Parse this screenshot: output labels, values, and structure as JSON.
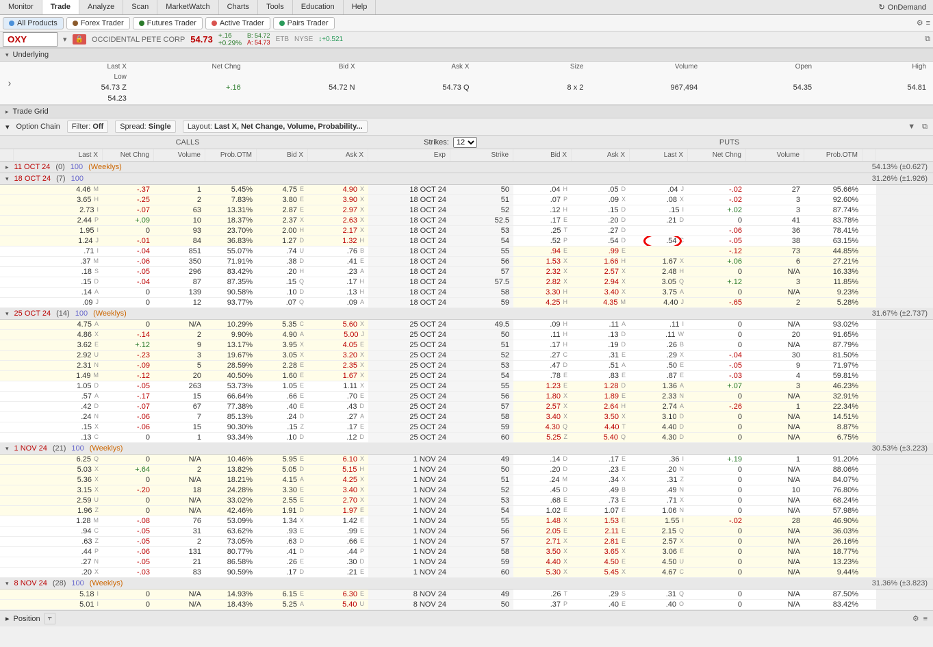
{
  "topnav": {
    "tabs": [
      "Monitor",
      "Trade",
      "Analyze",
      "Scan",
      "MarketWatch",
      "Charts",
      "Tools",
      "Education",
      "Help"
    ],
    "active": 1,
    "ondemand": "OnDemand"
  },
  "subnav": {
    "buttons": [
      {
        "label": "All Products",
        "icon": "#4a90d9",
        "active": true
      },
      {
        "label": "Forex Trader",
        "icon": "#8b5a2b"
      },
      {
        "label": "Futures Trader",
        "icon": "#2a7a2a"
      },
      {
        "label": "Active Trader",
        "icon": "#d9534f"
      },
      {
        "label": "Pairs Trader",
        "icon": "#2a9a5a"
      }
    ]
  },
  "symbol": {
    "ticker": "OXY",
    "name": "OCCIDENTAL PETE CORP",
    "last": "54.73",
    "chg_abs": "+.16",
    "chg_pct": "+0.29%",
    "bid_lbl": "B: 54.72",
    "ask_lbl": "A: 54.73",
    "etb": "ETB",
    "nyse": "NYSE",
    "div_icon": "+0.521"
  },
  "underlying": {
    "title": "Underlying",
    "headers": [
      "Last X",
      "Net Chng",
      "Bid X",
      "Ask X",
      "Size",
      "Volume",
      "Open",
      "High",
      "Low"
    ],
    "values": [
      "54.73  Z",
      "+.16",
      "54.72  N",
      "54.73  Q",
      "8 x 2",
      "967,494",
      "54.35",
      "54.81",
      "54.23"
    ]
  },
  "tradegrid": {
    "title": "Trade Grid"
  },
  "optionchain": {
    "title": "Option Chain",
    "filter_lbl": "Filter:",
    "filter_val": "Off",
    "spread_lbl": "Spread:",
    "spread_val": "Single",
    "layout_lbl": "Layout:",
    "layout_val": "Last X, Net Change, Volume, Probability...",
    "calls_lbl": "CALLS",
    "puts_lbl": "PUTS",
    "strikes_lbl": "Strikes:",
    "strikes_val": "12",
    "headers_calls": [
      "Last X",
      "Net Chng",
      "Volume",
      "Prob.OTM",
      "Bid X",
      "Ask X"
    ],
    "headers_mid": [
      "Exp",
      "Strike"
    ],
    "headers_puts": [
      "Bid X",
      "Ask X",
      "Last X",
      "Net Chng",
      "Volume",
      "Prob.OTM"
    ]
  },
  "expirations": [
    {
      "date": "11 OCT 24",
      "count": "(0)",
      "mult": "100",
      "weeklys": "(Weeklys)",
      "iv": "54.13% (±0.627)",
      "collapsed": true,
      "rows": []
    },
    {
      "date": "18 OCT 24",
      "count": "(7)",
      "mult": "100",
      "weeklys": "",
      "iv": "31.26% (±1.926)",
      "collapsed": false,
      "rows": [
        {
          "c": [
            "4.46 M",
            "-.37",
            "1",
            "5.45%",
            "4.75 E",
            "4.90 X"
          ],
          "s": "50",
          "e": "18 OCT 24",
          "p": [
            ".04 H",
            ".05 D",
            ".04 J",
            "-.02",
            "27",
            "95.66%"
          ],
          "itm": false
        },
        {
          "c": [
            "3.65 H",
            "-.25",
            "2",
            "7.83%",
            "3.80 E",
            "3.90 X"
          ],
          "s": "51",
          "e": "18 OCT 24",
          "p": [
            ".07 P",
            ".09 X",
            ".08 X",
            "-.02",
            "3",
            "92.60%"
          ],
          "itm": false
        },
        {
          "c": [
            "2.73 I",
            "-.07",
            "63",
            "13.31%",
            "2.87 E",
            "2.97 X"
          ],
          "s": "52",
          "e": "18 OCT 24",
          "p": [
            ".12 H",
            ".15 D",
            ".15 I",
            "+.02",
            "3",
            "87.74%"
          ],
          "itm": false
        },
        {
          "c": [
            "2.44 P",
            "+.09",
            "10",
            "18.37%",
            "2.37 X",
            "2.63 X"
          ],
          "s": "52.5",
          "e": "18 OCT 24",
          "p": [
            ".17 E",
            ".20 D",
            ".21 D",
            "0",
            "41",
            "83.78%"
          ],
          "itm": false
        },
        {
          "c": [
            "1.95 I",
            "0",
            "93",
            "23.70%",
            "2.00 H",
            "2.17 X"
          ],
          "s": "53",
          "e": "18 OCT 24",
          "p": [
            ".25 T",
            ".27 D",
            "",
            "-.06",
            "36",
            "78.41%"
          ],
          "itm": false
        },
        {
          "c": [
            "1.24 J",
            "-.01",
            "84",
            "36.83%",
            "1.27 D",
            "1.32 H"
          ],
          "s": "54",
          "e": "18 OCT 24",
          "p": [
            ".52 P",
            ".54 D",
            ".54 C",
            "-.05",
            "38",
            "63.15%"
          ],
          "itm": false,
          "circle": true
        },
        {
          "c": [
            ".71 I",
            "-.04",
            "851",
            "55.07%",
            ".74 U",
            ".76 B"
          ],
          "s": "55",
          "e": "18 OCT 24",
          "p": [
            ".94 E",
            ".99 E",
            "",
            "-.12",
            "73",
            "44.85%"
          ],
          "itm": true
        },
        {
          "c": [
            ".37 M",
            "-.06",
            "350",
            "71.91%",
            ".38 D",
            ".41 E"
          ],
          "s": "56",
          "e": "18 OCT 24",
          "p": [
            "1.53 X",
            "1.66 H",
            "1.67 X",
            "+.06",
            "6",
            "27.21%"
          ],
          "itm": true
        },
        {
          "c": [
            ".18 S",
            "-.05",
            "296",
            "83.42%",
            ".20 H",
            ".23 A"
          ],
          "s": "57",
          "e": "18 OCT 24",
          "p": [
            "2.32 X",
            "2.57 X",
            "2.48 H",
            "0",
            "N/A",
            "16.33%"
          ],
          "itm": true
        },
        {
          "c": [
            ".15 D",
            "-.04",
            "87",
            "87.35%",
            ".15 Q",
            ".17 H"
          ],
          "s": "57.5",
          "e": "18 OCT 24",
          "p": [
            "2.82 X",
            "2.94 X",
            "3.05 Q",
            "+.12",
            "3",
            "11.85%"
          ],
          "itm": true
        },
        {
          "c": [
            ".14 A",
            "0",
            "139",
            "90.58%",
            ".10 D",
            ".13 H"
          ],
          "s": "58",
          "e": "18 OCT 24",
          "p": [
            "3.30 H",
            "3.40 X",
            "3.75 A",
            "0",
            "N/A",
            "9.23%"
          ],
          "itm": true
        },
        {
          "c": [
            ".09 J",
            "0",
            "12",
            "93.77%",
            ".07 Q",
            ".09 A"
          ],
          "s": "59",
          "e": "18 OCT 24",
          "p": [
            "4.25 H",
            "4.35 M",
            "4.40 J",
            "-.65",
            "2",
            "5.28%"
          ],
          "itm": true
        }
      ]
    },
    {
      "date": "25 OCT 24",
      "count": "(14)",
      "mult": "100",
      "weeklys": "(Weeklys)",
      "iv": "31.67% (±2.737)",
      "collapsed": false,
      "rows": [
        {
          "c": [
            "4.75 A",
            "0",
            "N/A",
            "10.29%",
            "5.35 C",
            "5.60 X"
          ],
          "s": "49.5",
          "e": "25 OCT 24",
          "p": [
            ".09 H",
            ".11 A",
            ".11 I",
            "0",
            "N/A",
            "93.02%"
          ],
          "itm": false
        },
        {
          "c": [
            "4.86 X",
            "-.14",
            "2",
            "9.90%",
            "4.90 A",
            "5.00 J"
          ],
          "s": "50",
          "e": "25 OCT 24",
          "p": [
            ".11 H",
            ".13 D",
            ".11 W",
            "0",
            "20",
            "91.65%"
          ],
          "itm": false
        },
        {
          "c": [
            "3.62 E",
            "+.12",
            "9",
            "13.17%",
            "3.95 X",
            "4.05 E"
          ],
          "s": "51",
          "e": "25 OCT 24",
          "p": [
            ".17 H",
            ".19 D",
            ".26 B",
            "0",
            "N/A",
            "87.79%"
          ],
          "itm": false
        },
        {
          "c": [
            "2.92 U",
            "-.23",
            "3",
            "19.67%",
            "3.05 X",
            "3.20 X"
          ],
          "s": "52",
          "e": "25 OCT 24",
          "p": [
            ".27 C",
            ".31 E",
            ".29 X",
            "-.04",
            "30",
            "81.50%"
          ],
          "itm": false
        },
        {
          "c": [
            "2.31 N",
            "-.09",
            "5",
            "28.59%",
            "2.28 E",
            "2.35 X"
          ],
          "s": "53",
          "e": "25 OCT 24",
          "p": [
            ".47 D",
            ".51 A",
            ".50 E",
            "-.05",
            "9",
            "71.97%"
          ],
          "itm": false
        },
        {
          "c": [
            "1.49 M",
            "-.12",
            "20",
            "40.50%",
            "1.60 E",
            "1.67 X"
          ],
          "s": "54",
          "e": "25 OCT 24",
          "p": [
            ".78 E",
            ".83 E",
            ".87 E",
            "-.03",
            "4",
            "59.81%"
          ],
          "itm": false
        },
        {
          "c": [
            "1.05 D",
            "-.05",
            "263",
            "53.73%",
            "1.05 E",
            "1.11 X"
          ],
          "s": "55",
          "e": "25 OCT 24",
          "p": [
            "1.23 E",
            "1.28 D",
            "1.36 A",
            "+.07",
            "3",
            "46.23%"
          ],
          "itm": true
        },
        {
          "c": [
            ".57 A",
            "-.17",
            "15",
            "66.64%",
            ".66 E",
            ".70 E"
          ],
          "s": "56",
          "e": "25 OCT 24",
          "p": [
            "1.80 X",
            "1.89 E",
            "2.33 N",
            "0",
            "N/A",
            "32.91%"
          ],
          "itm": true
        },
        {
          "c": [
            ".42 D",
            "-.07",
            "67",
            "77.38%",
            ".40 E",
            ".43 D"
          ],
          "s": "57",
          "e": "25 OCT 24",
          "p": [
            "2.57 X",
            "2.64 H",
            "2.74 A",
            "-.26",
            "1",
            "22.34%"
          ],
          "itm": true
        },
        {
          "c": [
            ".24 N",
            "-.06",
            "7",
            "85.13%",
            ".24 D",
            ".27 A"
          ],
          "s": "58",
          "e": "25 OCT 24",
          "p": [
            "3.40 X",
            "3.50 X",
            "3.10 D",
            "0",
            "N/A",
            "14.51%"
          ],
          "itm": true
        },
        {
          "c": [
            ".15 X",
            "-.06",
            "15",
            "90.30%",
            ".15 Z",
            ".17 E"
          ],
          "s": "59",
          "e": "25 OCT 24",
          "p": [
            "4.30 Q",
            "4.40 T",
            "4.40 D",
            "0",
            "N/A",
            "8.87%"
          ],
          "itm": true
        },
        {
          "c": [
            ".13 C",
            "0",
            "1",
            "93.34%",
            ".10 D",
            ".12 D"
          ],
          "s": "60",
          "e": "25 OCT 24",
          "p": [
            "5.25 Z",
            "5.40 Q",
            "4.30 D",
            "0",
            "N/A",
            "6.75%"
          ],
          "itm": true
        }
      ]
    },
    {
      "date": "1 NOV 24",
      "count": "(21)",
      "mult": "100",
      "weeklys": "(Weeklys)",
      "iv": "30.53% (±3.223)",
      "collapsed": false,
      "rows": [
        {
          "c": [
            "6.25 Q",
            "0",
            "N/A",
            "10.46%",
            "5.95 E",
            "6.10 X"
          ],
          "s": "49",
          "e": "1 NOV 24",
          "p": [
            ".14 D",
            ".17 E",
            ".36 I",
            "+.19",
            "1",
            "91.20%"
          ],
          "itm": false
        },
        {
          "c": [
            "5.03 X",
            "+.64",
            "2",
            "13.82%",
            "5.05 D",
            "5.15 H"
          ],
          "s": "50",
          "e": "1 NOV 24",
          "p": [
            ".20 D",
            ".23 E",
            ".20 N",
            "0",
            "N/A",
            "88.06%"
          ],
          "itm": false
        },
        {
          "c": [
            "5.36 X",
            "0",
            "N/A",
            "18.21%",
            "4.15 A",
            "4.25 X"
          ],
          "s": "51",
          "e": "1 NOV 24",
          "p": [
            ".24 M",
            ".34 X",
            ".31 Z",
            "0",
            "N/A",
            "84.07%"
          ],
          "itm": false
        },
        {
          "c": [
            "3.15 X",
            "-.20",
            "18",
            "24.28%",
            "3.30 E",
            "3.40 X"
          ],
          "s": "52",
          "e": "1 NOV 24",
          "p": [
            ".45 D",
            ".49 B",
            ".49 N",
            "0",
            "10",
            "76.80%"
          ],
          "itm": false
        },
        {
          "c": [
            "2.59 U",
            "0",
            "N/A",
            "33.02%",
            "2.55 E",
            "2.70 X"
          ],
          "s": "53",
          "e": "1 NOV 24",
          "p": [
            ".68 E",
            ".73 E",
            ".71 X",
            "0",
            "N/A",
            "68.24%"
          ],
          "itm": false
        },
        {
          "c": [
            "1.96 Z",
            "0",
            "N/A",
            "42.46%",
            "1.91 D",
            "1.97 E"
          ],
          "s": "54",
          "e": "1 NOV 24",
          "p": [
            "1.02 E",
            "1.07 E",
            "1.06 N",
            "0",
            "N/A",
            "57.98%"
          ],
          "itm": false
        },
        {
          "c": [
            "1.28 M",
            "-.08",
            "76",
            "53.09%",
            "1.34 X",
            "1.42 E"
          ],
          "s": "55",
          "e": "1 NOV 24",
          "p": [
            "1.48 X",
            "1.53 E",
            "1.55 I",
            "-.02",
            "28",
            "46.90%"
          ],
          "itm": true
        },
        {
          "c": [
            ".94 C",
            "-.05",
            "31",
            "63.62%",
            ".93 E",
            ".99 E"
          ],
          "s": "56",
          "e": "1 NOV 24",
          "p": [
            "2.05 E",
            "2.11 E",
            "2.15 Q",
            "0",
            "N/A",
            "36.03%"
          ],
          "itm": true
        },
        {
          "c": [
            ".63 Z",
            "-.05",
            "2",
            "73.05%",
            ".63 D",
            ".66 E"
          ],
          "s": "57",
          "e": "1 NOV 24",
          "p": [
            "2.71 X",
            "2.81 E",
            "2.57 X",
            "0",
            "N/A",
            "26.16%"
          ],
          "itm": true
        },
        {
          "c": [
            ".44 P",
            "-.06",
            "131",
            "80.77%",
            ".41 D",
            ".44 P"
          ],
          "s": "58",
          "e": "1 NOV 24",
          "p": [
            "3.50 X",
            "3.65 X",
            "3.06 E",
            "0",
            "N/A",
            "18.77%"
          ],
          "itm": true
        },
        {
          "c": [
            ".27 N",
            "-.05",
            "21",
            "86.58%",
            ".26 E",
            ".30 D"
          ],
          "s": "59",
          "e": "1 NOV 24",
          "p": [
            "4.40 X",
            "4.50 E",
            "4.50 U",
            "0",
            "N/A",
            "13.23%"
          ],
          "itm": true
        },
        {
          "c": [
            ".20 X",
            "-.03",
            "83",
            "90.59%",
            ".17 D",
            ".21 E"
          ],
          "s": "60",
          "e": "1 NOV 24",
          "p": [
            "5.30 X",
            "5.45 X",
            "4.67 C",
            "0",
            "N/A",
            "9.44%"
          ],
          "itm": true
        }
      ]
    },
    {
      "date": "8 NOV 24",
      "count": "(28)",
      "mult": "100",
      "weeklys": "(Weeklys)",
      "iv": "31.36% (±3.823)",
      "collapsed": false,
      "rows": [
        {
          "c": [
            "5.18 I",
            "0",
            "N/A",
            "14.93%",
            "6.15 E",
            "6.30 E"
          ],
          "s": "49",
          "e": "8 NOV 24",
          "p": [
            ".26 T",
            ".29 S",
            ".31 Q",
            "0",
            "N/A",
            "87.50%"
          ],
          "itm": false
        },
        {
          "c": [
            "5.01 I",
            "0",
            "N/A",
            "18.43%",
            "5.25 A",
            "5.40 U"
          ],
          "s": "50",
          "e": "8 NOV 24",
          "p": [
            ".37 P",
            ".40 E",
            ".40 O",
            "0",
            "N/A",
            "83.42%"
          ],
          "itm": false
        }
      ]
    }
  ],
  "position": {
    "title": "Position"
  },
  "colors": {
    "neg": "#b00",
    "pos": "#2a7a2a",
    "itm_bg": "#fffde8",
    "link": "#66c",
    "weeklys": "#c60"
  }
}
